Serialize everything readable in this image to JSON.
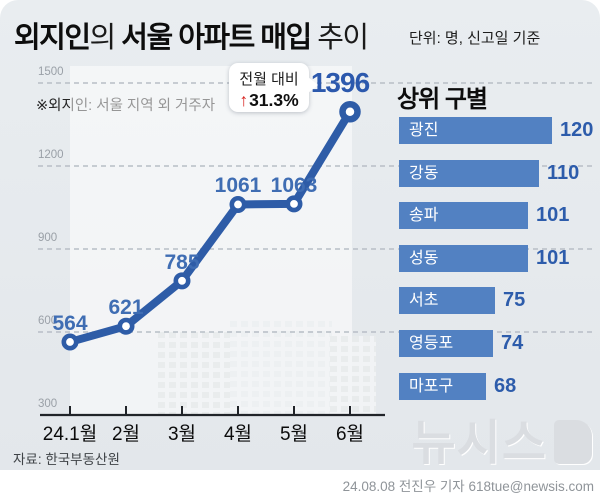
{
  "header": {
    "title_bold_1": "외지인",
    "title_regular_1": "의 ",
    "title_bold_2": "서울 아파트 매입",
    "title_regular_2": " 추이",
    "unit_label": "단위: 명, 신고일 기준"
  },
  "note": "※외지인: 서울 지역 외 거주자",
  "source": "자료: 한국부동산원",
  "byline": "24.08.08 전진우 기자 618tue@newsis.com",
  "watermark": "뉴시스",
  "colors": {
    "line_blue": "#2e5ca7",
    "value_label_blue": "#3f6db3",
    "final_value_blue": "#2c59ad",
    "bar_blue": "#5281c2",
    "arrow_red": "#d8231f",
    "panel_bg": "#e6eaee",
    "grid_gray": "#b8bec6",
    "axis_dark": "#212429"
  },
  "chart_data": [
    {
      "type": "line",
      "title": "외지인의 서울 아파트 매입 추이",
      "unit": "명, 신고일 기준",
      "x": [
        "24.1월",
        "2월",
        "3월",
        "4월",
        "5월",
        "6월"
      ],
      "values": [
        564,
        621,
        785,
        1061,
        1063,
        1396
      ],
      "ylim": [
        300,
        1500
      ],
      "yticks": [
        300,
        600,
        900,
        1200,
        1500
      ],
      "grid": "dashed-horizontal",
      "annotation": {
        "label": "전월 대비",
        "arrow": "↑",
        "percent": "31.3%",
        "applies_to": "6월"
      }
    },
    {
      "type": "bar",
      "title": "상위 구별",
      "orientation": "horizontal",
      "categories": [
        "광진",
        "강동",
        "송파",
        "성동",
        "서초",
        "영등포",
        "마포구"
      ],
      "values": [
        120,
        110,
        101,
        101,
        75,
        74,
        68
      ],
      "xlim": [
        0,
        120
      ]
    }
  ]
}
